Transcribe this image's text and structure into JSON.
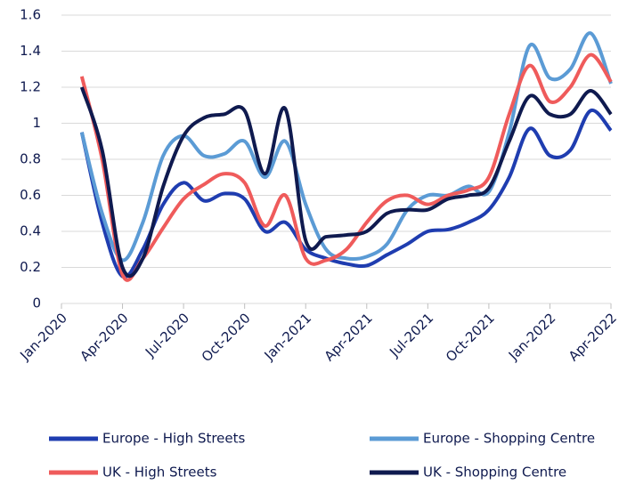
{
  "chart_data": {
    "type": "line",
    "x": [
      "2020-02",
      "2020-03",
      "2020-04",
      "2020-05",
      "2020-06",
      "2020-07",
      "2020-08",
      "2020-09",
      "2020-10",
      "2020-11",
      "2020-12",
      "2021-01",
      "2021-02",
      "2021-03",
      "2021-04",
      "2021-05",
      "2021-06",
      "2021-07",
      "2021-08",
      "2021-09",
      "2021-10",
      "2021-11",
      "2021-12",
      "2022-01",
      "2022-02",
      "2022-03",
      "2022-04"
    ],
    "series": [
      {
        "name": "Europe - High Streets",
        "color": "#1f3db0",
        "values": [
          0.95,
          0.45,
          0.15,
          0.3,
          0.55,
          0.67,
          0.57,
          0.61,
          0.58,
          0.4,
          0.45,
          0.3,
          0.25,
          0.22,
          0.21,
          0.27,
          0.33,
          0.4,
          0.41,
          0.45,
          0.52,
          0.7,
          0.97,
          0.82,
          0.85,
          1.07,
          0.96
        ]
      },
      {
        "name": "Europe - Shopping Centre",
        "color": "#5b9bd5",
        "values": [
          0.95,
          0.5,
          0.24,
          0.45,
          0.82,
          0.93,
          0.82,
          0.83,
          0.9,
          0.7,
          0.9,
          0.55,
          0.3,
          0.25,
          0.26,
          0.33,
          0.52,
          0.6,
          0.6,
          0.65,
          0.62,
          0.95,
          1.43,
          1.25,
          1.3,
          1.5,
          1.22
        ]
      },
      {
        "name": "UK - High Streets",
        "color": "#ef5b5b",
        "values": [
          1.26,
          0.8,
          0.16,
          0.25,
          0.42,
          0.58,
          0.66,
          0.72,
          0.67,
          0.43,
          0.6,
          0.25,
          0.24,
          0.3,
          0.45,
          0.57,
          0.6,
          0.55,
          0.6,
          0.63,
          0.7,
          1.05,
          1.32,
          1.12,
          1.2,
          1.38,
          1.23
        ]
      },
      {
        "name": "UK - Shopping Centre",
        "color": "#0f1a4f",
        "values": [
          1.2,
          0.85,
          0.2,
          0.25,
          0.65,
          0.93,
          1.03,
          1.05,
          1.07,
          0.72,
          1.08,
          0.35,
          0.37,
          0.38,
          0.4,
          0.5,
          0.52,
          0.52,
          0.58,
          0.6,
          0.64,
          0.9,
          1.15,
          1.05,
          1.05,
          1.18,
          1.05
        ]
      }
    ],
    "xlim": [
      "2020-01",
      "2022-04"
    ],
    "xticks": [
      {
        "value": "2020-01",
        "label": "Jan-2020"
      },
      {
        "value": "2020-04",
        "label": "Apr-2020"
      },
      {
        "value": "2020-07",
        "label": "Jul-2020"
      },
      {
        "value": "2020-10",
        "label": "Oct-2020"
      },
      {
        "value": "2021-01",
        "label": "Jan-2021"
      },
      {
        "value": "2021-04",
        "label": "Apr-2021"
      },
      {
        "value": "2021-07",
        "label": "Jul-2021"
      },
      {
        "value": "2021-10",
        "label": "Oct-2021"
      },
      {
        "value": "2022-01",
        "label": "Jan-2022"
      },
      {
        "value": "2022-04",
        "label": "Apr-2022"
      }
    ],
    "ylim": [
      0,
      1.6
    ],
    "yticks": [
      0,
      0.2,
      0.4,
      0.6,
      0.8,
      1,
      1.2,
      1.4,
      1.6
    ],
    "grid": true
  }
}
